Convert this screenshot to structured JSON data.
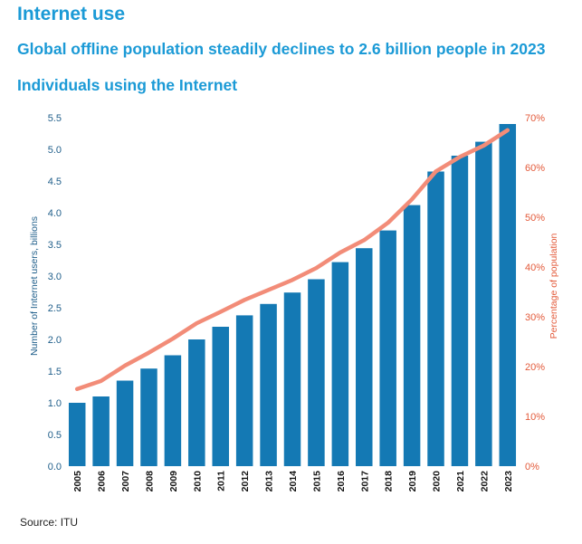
{
  "header": {
    "section_title": "Internet use",
    "headline": "Global offline population steadily declines to 2.6 billion people in 2023"
  },
  "footer": {
    "source": "Source: ITU"
  },
  "colors": {
    "bars": "#1479b4",
    "line": "#f28c78",
    "left_axis": "#1f5e8a",
    "right_axis": "#e35a3a",
    "title": "#1b9ad6"
  },
  "chart_data": {
    "type": "bar+line",
    "title": "Individuals using the Internet",
    "categories": [
      "2005",
      "2006",
      "2007",
      "2008",
      "2009",
      "2010",
      "2011",
      "2012",
      "2013",
      "2014",
      "2015",
      "2016",
      "2017",
      "2018",
      "2019",
      "2020",
      "2021",
      "2022",
      "2023"
    ],
    "series": [
      {
        "type": "bar",
        "axis": "left",
        "values": [
          1.0,
          1.1,
          1.35,
          1.54,
          1.75,
          2.0,
          2.2,
          2.38,
          2.56,
          2.74,
          2.95,
          3.22,
          3.44,
          3.72,
          4.12,
          4.65,
          4.9,
          5.12,
          5.4
        ]
      },
      {
        "type": "line",
        "axis": "right",
        "values": [
          15.5,
          17.1,
          20.2,
          22.8,
          25.6,
          28.7,
          31.0,
          33.4,
          35.4,
          37.4,
          39.8,
          42.9,
          45.4,
          48.9,
          53.6,
          59.2,
          62.1,
          64.4,
          67.5
        ]
      }
    ],
    "y_left": {
      "label": "Number of Internet users, billions",
      "range": [
        0,
        5.5
      ],
      "ticks": [
        "0.0",
        "0.5",
        "1.0",
        "1.5",
        "2.0",
        "2.5",
        "3.0",
        "3.5",
        "4.0",
        "4.5",
        "5.0",
        "5.5"
      ]
    },
    "y_right": {
      "label": "Percentage of population",
      "range": [
        0,
        70
      ],
      "ticks": [
        "0%",
        "10%",
        "20%",
        "30%",
        "40%",
        "50%",
        "60%",
        "70%"
      ]
    },
    "grid": false,
    "legend": "none"
  }
}
